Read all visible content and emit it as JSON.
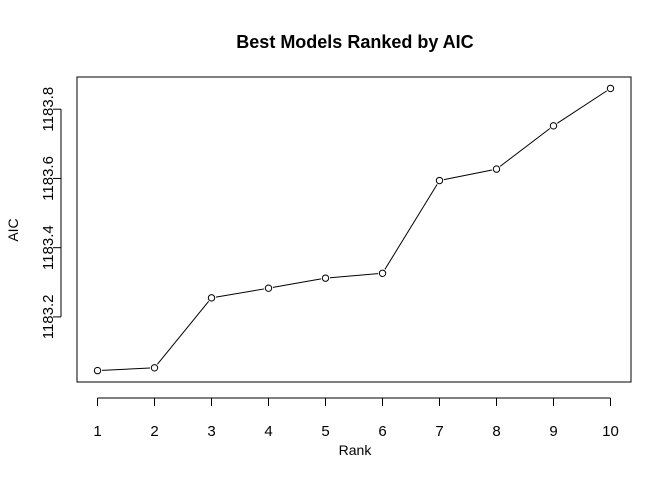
{
  "chart_data": {
    "type": "line",
    "title": "Best Models Ranked by AIC",
    "xlabel": "Rank",
    "ylabel": "AIC",
    "x": [
      1,
      2,
      3,
      4,
      5,
      6,
      7,
      8,
      9,
      10
    ],
    "series": [
      {
        "values": [
          1183.045,
          1183.053,
          1183.255,
          1183.283,
          1183.312,
          1183.326,
          1183.594,
          1183.627,
          1183.752,
          1183.86
        ]
      }
    ],
    "xticks": [
      1,
      2,
      3,
      4,
      5,
      6,
      7,
      8,
      9,
      10
    ],
    "xtick_labels": [
      "1",
      "2",
      "3",
      "4",
      "5",
      "6",
      "7",
      "8",
      "9",
      "10"
    ],
    "yticks": [
      1183.2,
      1183.4,
      1183.6,
      1183.8
    ],
    "ytick_labels": [
      "1183.2",
      "1183.4",
      "1183.6",
      "1183.8"
    ],
    "xlim": [
      0.64,
      10.36
    ],
    "ylim": [
      1183.012,
      1183.893
    ],
    "grid": false,
    "legend": "none",
    "markers": "open-circle",
    "colors": {
      "line": "#000000",
      "marker_stroke": "#000000",
      "marker_fill": "#ffffff",
      "frame": "#000000"
    }
  }
}
